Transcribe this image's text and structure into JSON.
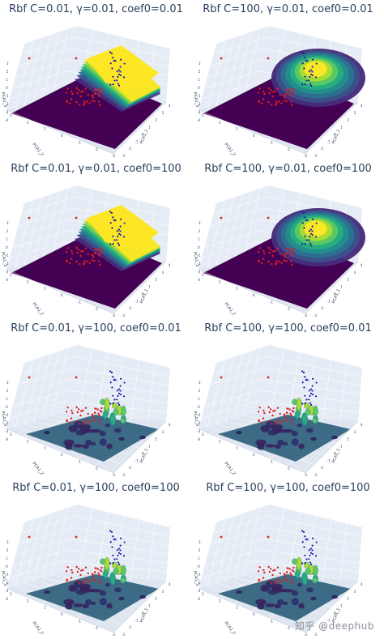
{
  "chart_data": [
    {
      "type": "scatter",
      "title": "Rbf C=0.01, γ=0.01, coef0=0.01",
      "xlabel": "PCA1_1",
      "ylabel": "PCA1_2",
      "zlabel": "PCA1_3",
      "surface": "smooth-ramp",
      "colorscale": "viridis",
      "series": [
        {
          "name": "",
          "color": "#d62728"
        },
        {
          "name": "",
          "color": "#1f1fbf"
        }
      ]
    },
    {
      "type": "scatter",
      "title": "Rbf C=100, γ=0.01, coef0=0.01",
      "xlabel": "PCA1_1",
      "ylabel": "PCA1_2",
      "zlabel": "PCA1_3",
      "surface": "smooth-dome",
      "colorscale": "viridis",
      "series": [
        {
          "name": "",
          "color": "#d62728"
        },
        {
          "name": "",
          "color": "#1f1fbf"
        }
      ]
    },
    {
      "type": "scatter",
      "title": "Rbf C=0.01, γ=0.01, coef0=100",
      "xlabel": "PCA1_1",
      "ylabel": "PCA1_2",
      "zlabel": "PCA1_3",
      "surface": "smooth-ramp",
      "colorscale": "viridis",
      "series": [
        {
          "name": "",
          "color": "#d62728"
        },
        {
          "name": "",
          "color": "#1f1fbf"
        }
      ]
    },
    {
      "type": "scatter",
      "title": "Rbf C=100, γ=0.01, coef0=100",
      "xlabel": "PCA1_1",
      "ylabel": "PCA1_2",
      "zlabel": "PCA1_3",
      "surface": "smooth-dome",
      "colorscale": "viridis",
      "series": [
        {
          "name": "",
          "color": "#d62728"
        },
        {
          "name": "",
          "color": "#1f1fbf"
        }
      ]
    },
    {
      "type": "scatter",
      "title": "Rbf C=0.01, γ=100, coef0=0.01",
      "xlabel": "PCA1_1",
      "ylabel": "PCA1_2",
      "zlabel": "PCA1_3",
      "surface": "flat-spiky",
      "colorscale": "viridis",
      "series": [
        {
          "name": "",
          "color": "#d62728"
        },
        {
          "name": "",
          "color": "#1f1fbf"
        }
      ]
    },
    {
      "type": "scatter",
      "title": "Rbf C=100, γ=100, coef0=0.01",
      "xlabel": "PCA1_1",
      "ylabel": "PCA1_2",
      "zlabel": "PCA1_3",
      "surface": "flat-spiky",
      "colorscale": "viridis",
      "series": [
        {
          "name": "",
          "color": "#d62728"
        },
        {
          "name": "",
          "color": "#1f1fbf"
        }
      ]
    },
    {
      "type": "scatter",
      "title": "Rbf C=0.01, γ=100, coef0=100",
      "xlabel": "PCA1_1",
      "ylabel": "PCA1_2",
      "zlabel": "PCA1_3",
      "surface": "flat-spiky",
      "colorscale": "viridis",
      "series": [
        {
          "name": "",
          "color": "#d62728"
        },
        {
          "name": "",
          "color": "#1f1fbf"
        }
      ]
    },
    {
      "type": "scatter",
      "title": "Rbf C=100, γ=100, coef0=100",
      "xlabel": "PCA1_1",
      "ylabel": "PCA1_2",
      "zlabel": "PCA1_3",
      "surface": "flat-spiky",
      "colorscale": "viridis",
      "series": [
        {
          "name": "",
          "color": "#d62728"
        },
        {
          "name": "",
          "color": "#1f1fbf"
        }
      ]
    }
  ],
  "watermark": "知乎 @deephub",
  "colors": {
    "red_points": "#e02020",
    "blue_points": "#1a1aaa",
    "floor": "#3d6b86",
    "bg_wall": "#e5ecf6",
    "grid": "#ffffff"
  }
}
